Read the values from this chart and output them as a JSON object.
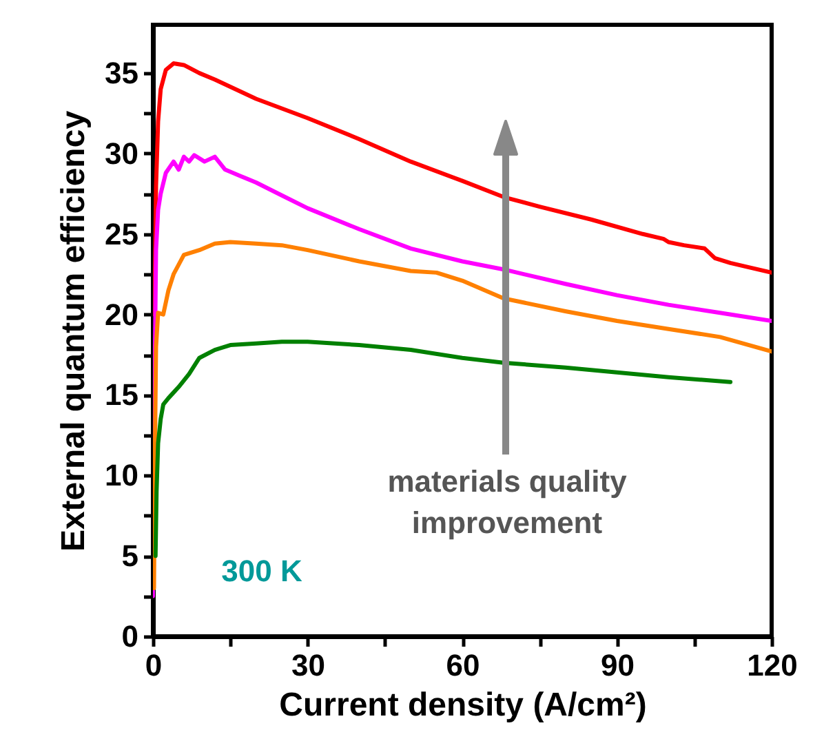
{
  "chart_data": {
    "type": "line",
    "xlabel": "Current density (A/cm²)",
    "ylabel": "External quantum efficiency",
    "xlim": [
      0,
      120
    ],
    "ylim": [
      0,
      38
    ],
    "xticks": [
      0,
      {
        "value": 15,
        "label": null
      },
      30,
      {
        "value": 45,
        "label": null
      },
      60,
      {
        "value": 75,
        "label": null
      },
      90,
      {
        "value": 105,
        "label": null
      },
      120
    ],
    "yticks": [
      0,
      {
        "value": 2.5,
        "label": null
      },
      5,
      {
        "value": 7.5,
        "label": null
      },
      10,
      {
        "value": 12.5,
        "label": null
      },
      15,
      {
        "value": 17.5,
        "label": null
      },
      20,
      {
        "value": 22.5,
        "label": null
      },
      25,
      {
        "value": 27.5,
        "label": null
      },
      30,
      {
        "value": 32.5,
        "label": null
      },
      35
    ],
    "annotations": [
      "materials quality improvement",
      "300 K"
    ],
    "series": [
      {
        "color": "#ff0000",
        "x": [
          0.3,
          0.6,
          1,
          1.5,
          2.5,
          4,
          6,
          9,
          12,
          16,
          20,
          25,
          30,
          40,
          50,
          60,
          68,
          75,
          85,
          95,
          99,
          100,
          103,
          107,
          109,
          112,
          116,
          120
        ],
        "values": [
          20,
          28,
          32,
          34,
          35.2,
          35.6,
          35.5,
          35,
          34.6,
          34,
          33.4,
          32.8,
          32.2,
          30.9,
          29.5,
          28.3,
          27.3,
          26.7,
          25.9,
          25,
          24.7,
          24.5,
          24.3,
          24.1,
          23.5,
          23.2,
          22.9,
          22.6
        ]
      },
      {
        "color": "#ff00ff",
        "x": [
          0,
          0.3,
          0.6,
          1,
          1.5,
          2.5,
          4,
          5,
          6,
          7,
          8,
          10,
          12,
          14,
          17,
          20,
          25,
          30,
          40,
          50,
          60,
          68,
          80,
          90,
          100,
          110,
          120
        ],
        "values": [
          2.5,
          15,
          24,
          26.5,
          27.5,
          28.8,
          29.5,
          29,
          29.8,
          29.5,
          29.9,
          29.5,
          29.8,
          29,
          28.6,
          28.2,
          27.4,
          26.6,
          25.3,
          24.1,
          23.3,
          22.8,
          21.9,
          21.2,
          20.6,
          20.1,
          19.6
        ]
      },
      {
        "color": "#ff8000",
        "x": [
          0.2,
          0.4,
          0.6,
          1,
          2,
          3,
          4,
          6,
          9,
          12,
          15,
          20,
          25,
          30,
          40,
          50,
          55,
          60,
          68,
          80,
          90,
          100,
          110,
          120
        ],
        "values": [
          3,
          12,
          18,
          20.1,
          20,
          21.5,
          22.5,
          23.7,
          24,
          24.4,
          24.5,
          24.4,
          24.3,
          24,
          23.3,
          22.7,
          22.6,
          22.1,
          21,
          20.2,
          19.6,
          19.1,
          18.6,
          17.7
        ]
      },
      {
        "color": "#008000",
        "x": [
          0.5,
          0.7,
          1,
          1.5,
          2,
          3,
          5,
          7,
          9,
          12,
          15,
          20,
          25,
          30,
          40,
          50,
          60,
          68,
          80,
          90,
          100,
          112
        ],
        "values": [
          5,
          9,
          12,
          13.5,
          14.4,
          14.8,
          15.5,
          16.3,
          17.3,
          17.8,
          18.1,
          18.2,
          18.3,
          18.3,
          18.1,
          17.8,
          17.3,
          17,
          16.7,
          16.4,
          16.1,
          15.8
        ]
      }
    ]
  }
}
